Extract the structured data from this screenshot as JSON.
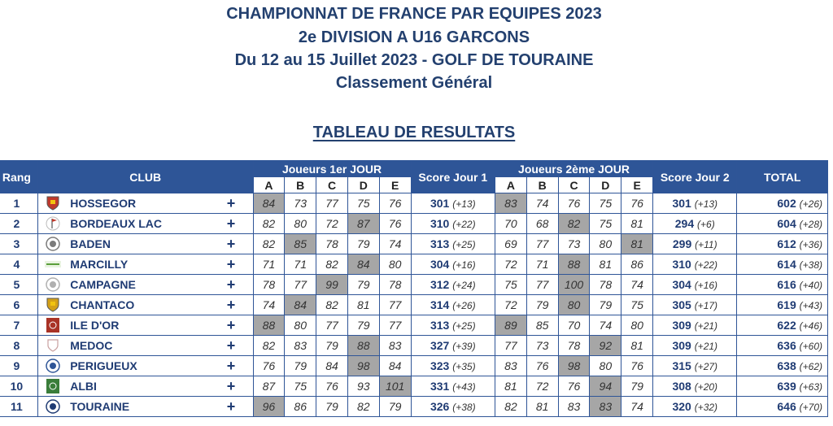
{
  "header": {
    "line1": "CHAMPIONNAT DE FRANCE PAR EQUIPES 2023",
    "line2": "2e DIVISION A U16 GARCONS",
    "line3": "Du 12 au 15 Juillet 2023 - GOLF DE TOURAINE",
    "line4": "Classement Général",
    "subtitle": "TABLEAU DE RESULTATS"
  },
  "columns": {
    "rang": "Rang",
    "club": "CLUB",
    "day1": "Joueurs 1er JOUR",
    "score1": "Score Jour 1",
    "day2": "Joueurs 2ème JOUR",
    "score2": "Score Jour 2",
    "total": "TOTAL",
    "players": [
      "A",
      "B",
      "C",
      "D",
      "E"
    ]
  },
  "rows": [
    {
      "rang": "1",
      "club": "HOSSEGOR",
      "logo": "shield-logo",
      "logo_color": "#c0392b",
      "plus": "+",
      "d1": [
        "84",
        "73",
        "77",
        "75",
        "76"
      ],
      "d1_low": 0,
      "s1": "301",
      "s1d": "(+13)",
      "d2": [
        "83",
        "74",
        "76",
        "75",
        "76"
      ],
      "d2_low": 0,
      "s2": "301",
      "s2d": "(+13)",
      "total": "602",
      "totald": "(+26)"
    },
    {
      "rang": "2",
      "club": "BORDEAUX LAC",
      "logo": "golf-flag-logo",
      "logo_color": "#c0392b",
      "plus": "+",
      "d1": [
        "82",
        "80",
        "72",
        "87",
        "76"
      ],
      "d1_low": 3,
      "s1": "310",
      "s1d": "(+22)",
      "d2": [
        "70",
        "68",
        "82",
        "75",
        "81"
      ],
      "d2_low": 2,
      "s2": "294",
      "s2d": "(+6)",
      "total": "604",
      "totald": "(+28)"
    },
    {
      "rang": "3",
      "club": "BADEN",
      "logo": "round-logo",
      "logo_color": "#7a7a7a",
      "plus": "+",
      "d1": [
        "82",
        "85",
        "78",
        "79",
        "74"
      ],
      "d1_low": 1,
      "s1": "313",
      "s1d": "(+25)",
      "d2": [
        "69",
        "77",
        "73",
        "80",
        "81"
      ],
      "d2_low": 4,
      "s2": "299",
      "s2d": "(+11)",
      "total": "612",
      "totald": "(+36)"
    },
    {
      "rang": "4",
      "club": "MARCILLY",
      "logo": "text-logo",
      "logo_color": "#5a9e3a",
      "plus": "+",
      "d1": [
        "71",
        "71",
        "82",
        "84",
        "80"
      ],
      "d1_low": 3,
      "s1": "304",
      "s1d": "(+16)",
      "d2": [
        "72",
        "71",
        "88",
        "81",
        "86"
      ],
      "d2_low": 2,
      "s2": "310",
      "s2d": "(+22)",
      "total": "614",
      "totald": "(+38)"
    },
    {
      "rang": "5",
      "club": "CAMPAGNE",
      "logo": "round-logo",
      "logo_color": "#b0b0b0",
      "plus": "+",
      "d1": [
        "78",
        "77",
        "99",
        "79",
        "78"
      ],
      "d1_low": 2,
      "s1": "312",
      "s1d": "(+24)",
      "d2": [
        "75",
        "77",
        "100",
        "78",
        "74"
      ],
      "d2_low": 2,
      "s2": "304",
      "s2d": "(+16)",
      "total": "616",
      "totald": "(+40)"
    },
    {
      "rang": "6",
      "club": "CHANTACO",
      "logo": "shield-logo",
      "logo_color": "#d4a017",
      "plus": "+",
      "d1": [
        "74",
        "84",
        "82",
        "81",
        "77"
      ],
      "d1_low": 1,
      "s1": "314",
      "s1d": "(+26)",
      "d2": [
        "72",
        "79",
        "80",
        "79",
        "75"
      ],
      "d2_low": 2,
      "s2": "305",
      "s2d": "(+17)",
      "total": "619",
      "totald": "(+43)"
    },
    {
      "rang": "7",
      "club": "ILE D'OR",
      "logo": "square-logo",
      "logo_color": "#a93226",
      "plus": "+",
      "d1": [
        "88",
        "80",
        "77",
        "79",
        "77"
      ],
      "d1_low": 0,
      "s1": "313",
      "s1d": "(+25)",
      "d2": [
        "89",
        "85",
        "70",
        "74",
        "80"
      ],
      "d2_low": 0,
      "s2": "309",
      "s2d": "(+21)",
      "total": "622",
      "totald": "(+46)"
    },
    {
      "rang": "8",
      "club": "MEDOC",
      "logo": "crest-logo",
      "logo_color": "#c9a0a0",
      "plus": "+",
      "d1": [
        "82",
        "83",
        "79",
        "88",
        "83"
      ],
      "d1_low": 3,
      "s1": "327",
      "s1d": "(+39)",
      "d2": [
        "77",
        "73",
        "78",
        "92",
        "81"
      ],
      "d2_low": 3,
      "s2": "309",
      "s2d": "(+21)",
      "total": "636",
      "totald": "(+60)"
    },
    {
      "rang": "9",
      "club": "PERIGUEUX",
      "logo": "round-logo",
      "logo_color": "#2e5597",
      "plus": "+",
      "d1": [
        "76",
        "79",
        "84",
        "98",
        "84"
      ],
      "d1_low": 3,
      "s1": "323",
      "s1d": "(+35)",
      "d2": [
        "83",
        "76",
        "98",
        "80",
        "76"
      ],
      "d2_low": 2,
      "s2": "315",
      "s2d": "(+27)",
      "total": "638",
      "totald": "(+62)"
    },
    {
      "rang": "10",
      "club": "ALBI",
      "logo": "square-logo",
      "logo_color": "#3a7d3a",
      "plus": "+",
      "d1": [
        "87",
        "75",
        "76",
        "93",
        "101"
      ],
      "d1_low": 4,
      "s1": "331",
      "s1d": "(+43)",
      "d2": [
        "81",
        "72",
        "76",
        "94",
        "79"
      ],
      "d2_low": 3,
      "s2": "308",
      "s2d": "(+20)",
      "total": "639",
      "totald": "(+63)"
    },
    {
      "rang": "11",
      "club": "TOURAINE",
      "logo": "round-logo",
      "logo_color": "#1f3b73",
      "plus": "+",
      "d1": [
        "96",
        "86",
        "79",
        "82",
        "79"
      ],
      "d1_low": 0,
      "s1": "326",
      "s1d": "(+38)",
      "d2": [
        "82",
        "81",
        "83",
        "83",
        "74"
      ],
      "d2_low": 3,
      "s2": "320",
      "s2d": "(+32)",
      "total": "646",
      "totald": "(+70)"
    }
  ]
}
